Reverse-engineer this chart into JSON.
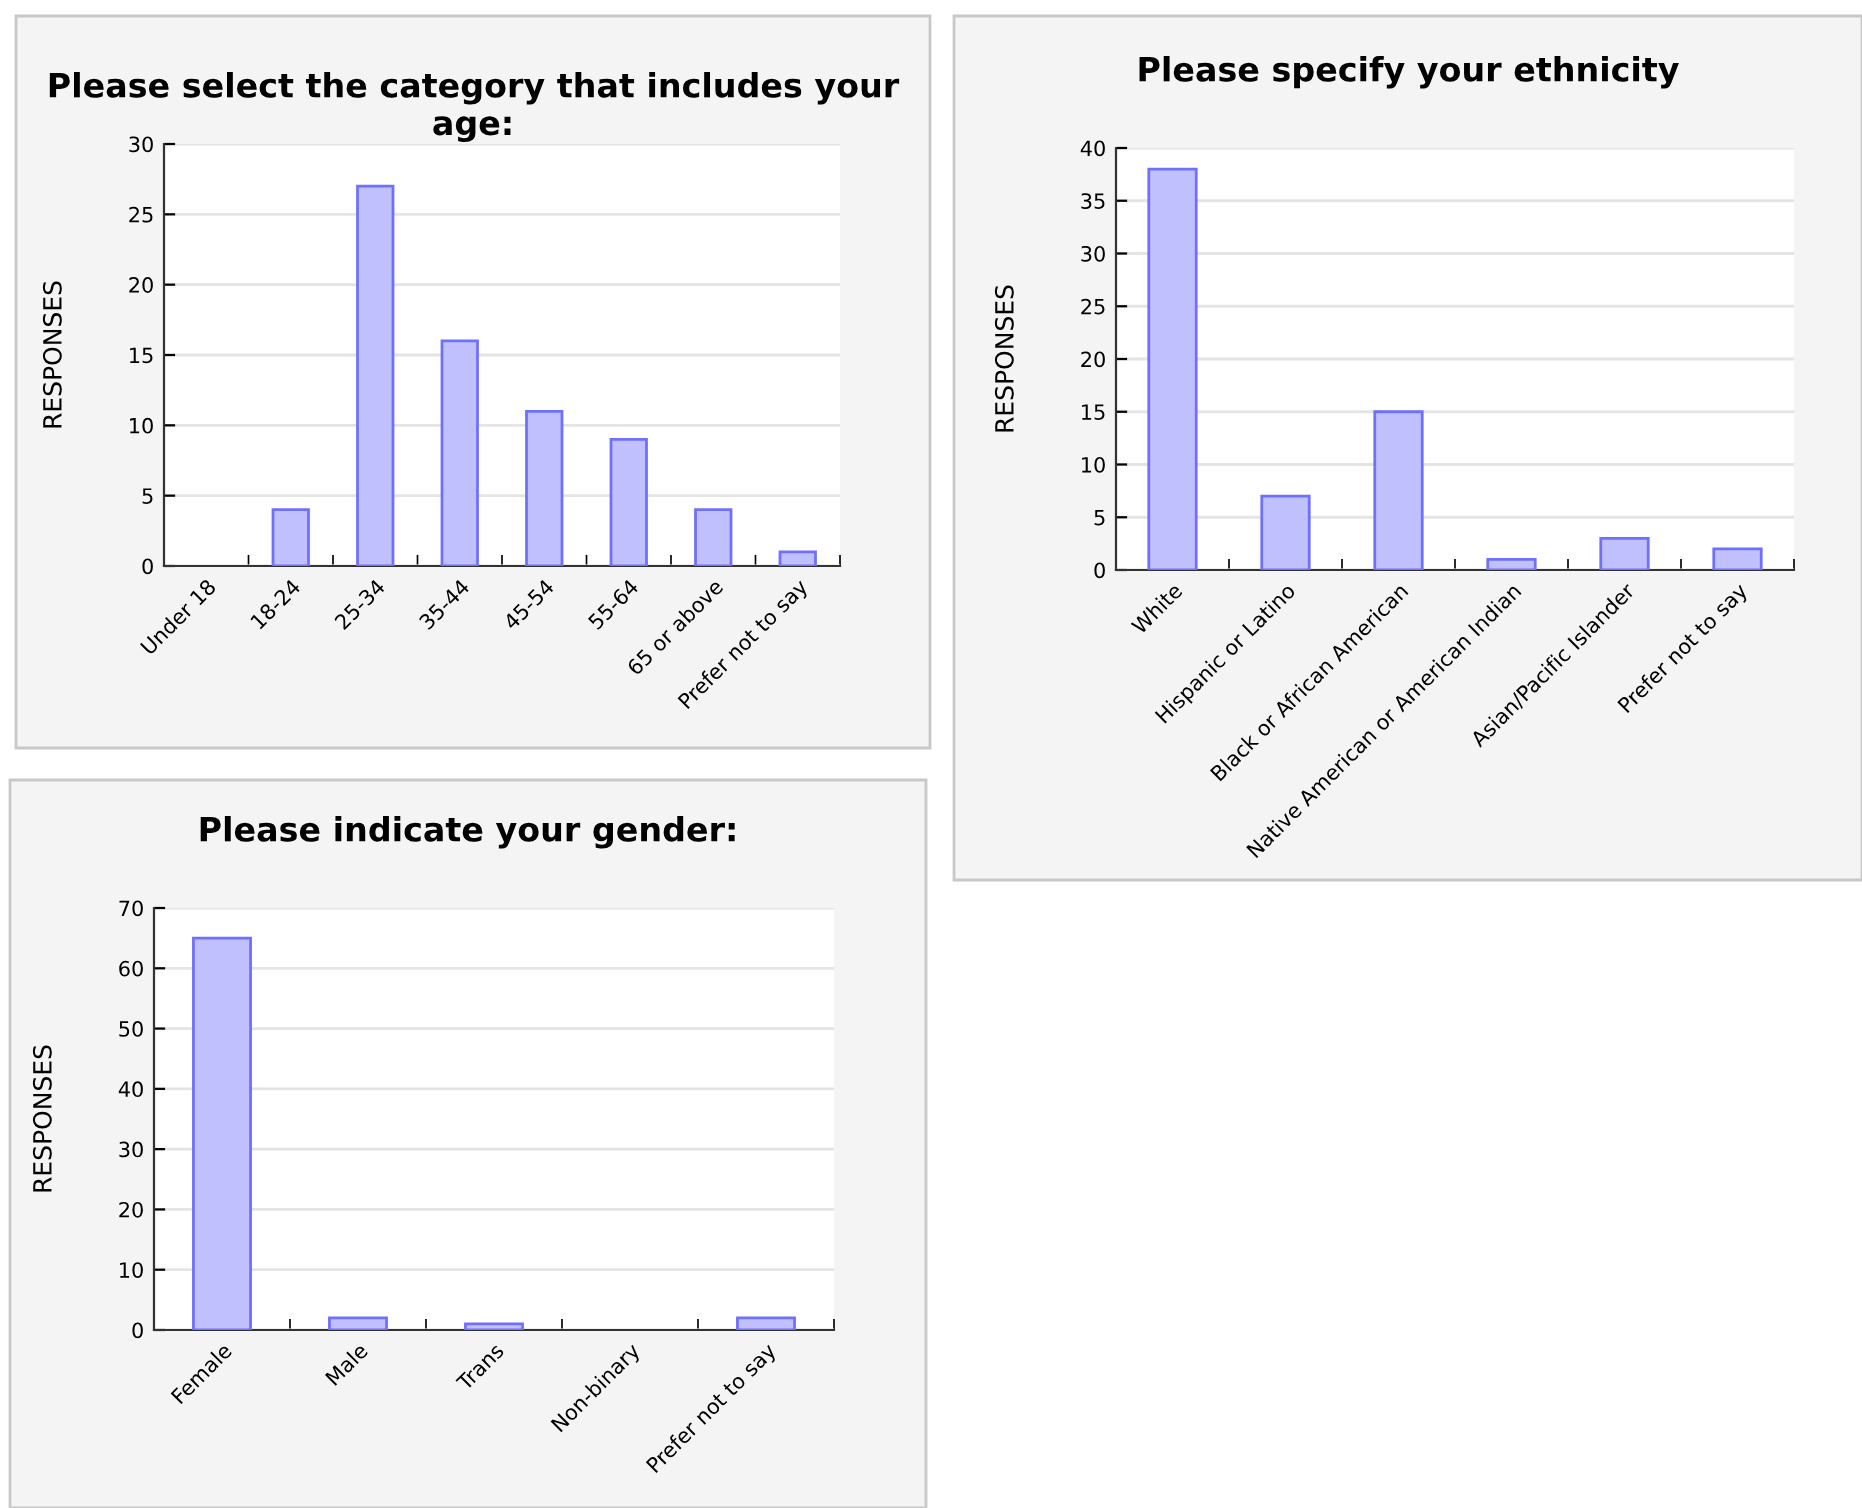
{
  "chart_data": [
    {
      "type": "bar",
      "title": "Please select the category that includes your age:",
      "ylabel": "RESPONSES",
      "categories": [
        "Under 18",
        "18-24",
        "25-34",
        "35-44",
        "45-54",
        "55-64",
        "65 or above",
        "Prefer not to say"
      ],
      "values": [
        0,
        4,
        27,
        16,
        11,
        9,
        4,
        1
      ],
      "color": "#c0c0ff",
      "ylim": [
        0,
        30
      ],
      "yticks": [
        0,
        5,
        10,
        15,
        20,
        25,
        30
      ],
      "grid": "y",
      "legend": false
    },
    {
      "type": "bar",
      "title": "Please specify your ethnicity",
      "ylabel": "RESPONSES",
      "categories": [
        "White",
        "Hispanic or Latino",
        "Black or African American",
        "Native American or American Indian",
        "Asian/Pacific Islander",
        "Prefer not to say"
      ],
      "values": [
        38,
        7,
        15,
        1,
        3,
        2
      ],
      "color": "#c0c0ff",
      "ylim": [
        0,
        40
      ],
      "yticks": [
        0,
        5,
        10,
        15,
        20,
        25,
        30,
        35,
        40
      ],
      "grid": "y",
      "legend": false
    },
    {
      "type": "bar",
      "title": "Please indicate your gender:",
      "ylabel": "RESPONSES",
      "categories": [
        "Female",
        "Male",
        "Trans",
        "Non-binary",
        "Prefer not to say"
      ],
      "values": [
        65,
        2,
        1,
        0,
        2
      ],
      "color": "#c0c0ff",
      "ylim": [
        0,
        70
      ],
      "yticks": [
        0,
        10,
        20,
        30,
        40,
        50,
        60,
        70
      ],
      "grid": "y",
      "legend": false
    }
  ]
}
